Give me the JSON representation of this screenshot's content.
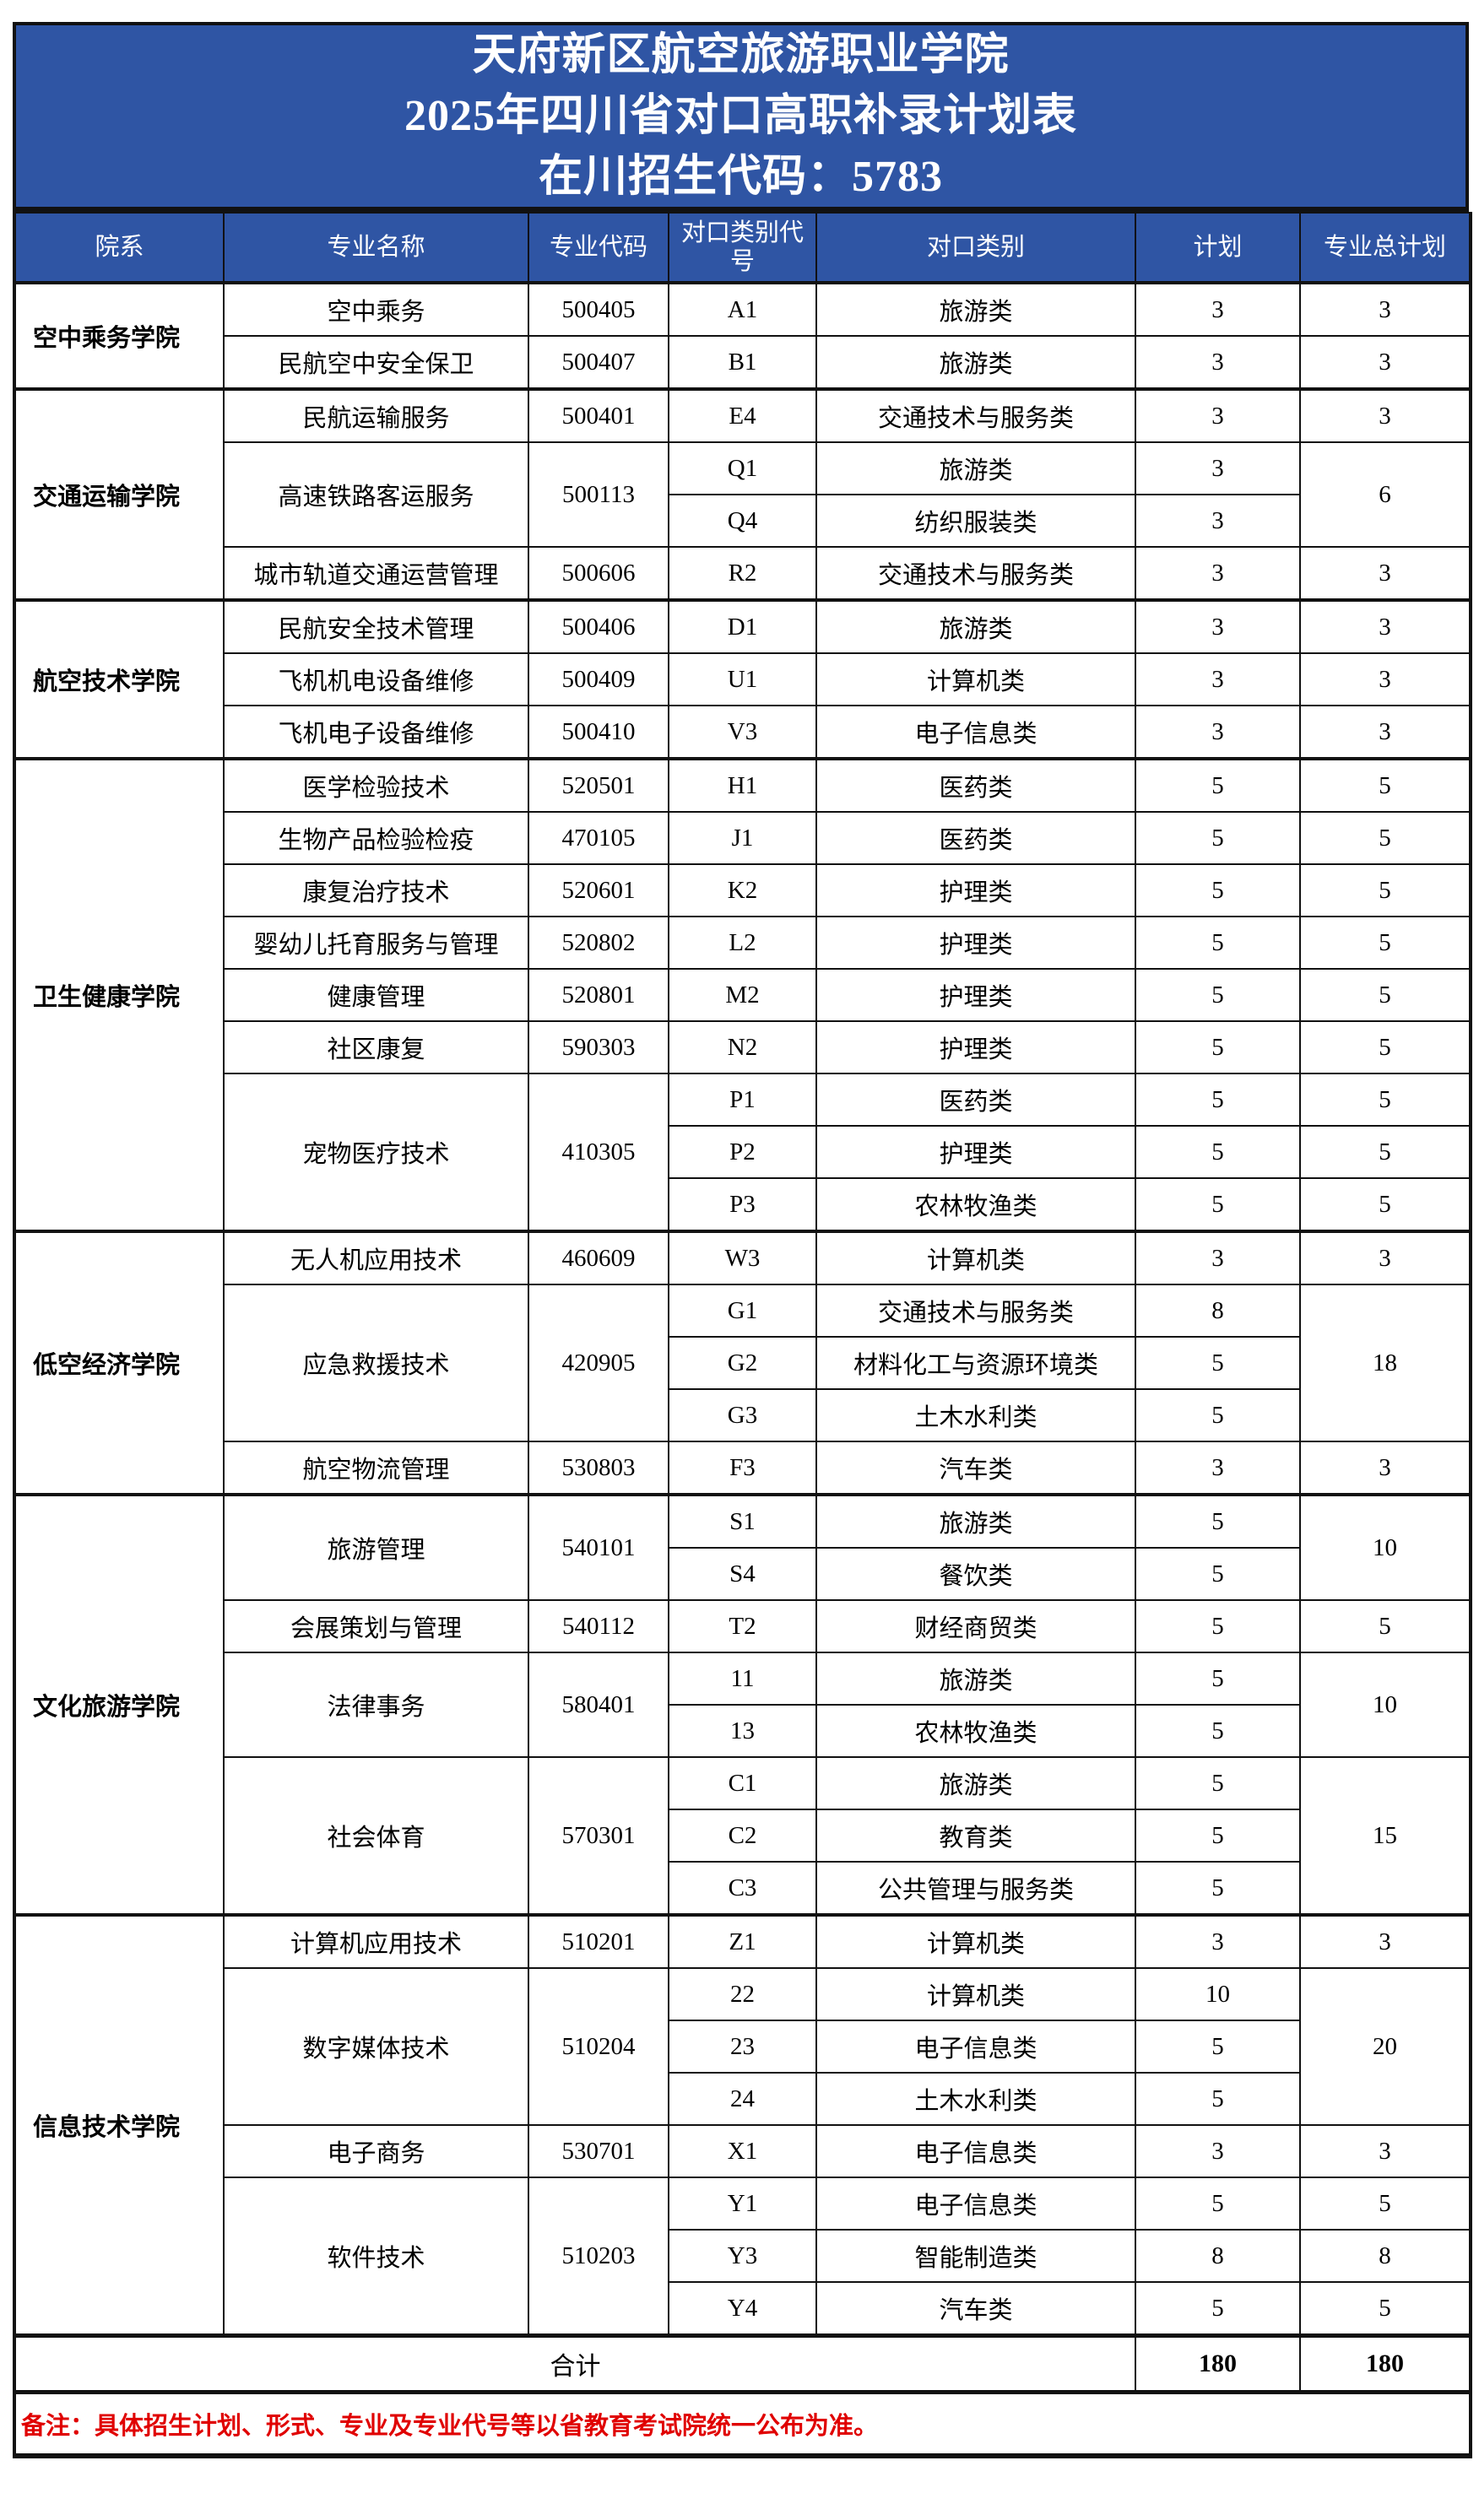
{
  "title": {
    "line1": "天府新区航空旅游职业学院",
    "line2": "2025年四川省对口高职补录计划表",
    "line3": "在川招生代码：5783"
  },
  "colors": {
    "header_bg": "#2F55A4",
    "header_text": "#FFFFFF",
    "note_text": "#E00000"
  },
  "columns": [
    "院系",
    "专业名称",
    "专业代码",
    "对口类别代号",
    "对口类别",
    "计划",
    "专业总计划"
  ],
  "departments": [
    {
      "name": "空中乘务学院",
      "majors": [
        {
          "name": "空中乘务",
          "code": "500405",
          "total": "3",
          "categories": [
            {
              "code": "A1",
              "category": "旅游类",
              "plan": "3"
            }
          ]
        },
        {
          "name": "民航空中安全保卫",
          "code": "500407",
          "total": "3",
          "categories": [
            {
              "code": "B1",
              "category": "旅游类",
              "plan": "3"
            }
          ]
        }
      ]
    },
    {
      "name": "交通运输学院",
      "majors": [
        {
          "name": "民航运输服务",
          "code": "500401",
          "total": "3",
          "categories": [
            {
              "code": "E4",
              "category": "交通技术与服务类",
              "plan": "3"
            }
          ]
        },
        {
          "name": "高速铁路客运服务",
          "code": "500113",
          "total": "6",
          "categories": [
            {
              "code": "Q1",
              "category": "旅游类",
              "plan": "3"
            },
            {
              "code": "Q4",
              "category": "纺织服装类",
              "plan": "3"
            }
          ]
        },
        {
          "name": "城市轨道交通运营管理",
          "code": "500606",
          "total": "3",
          "categories": [
            {
              "code": "R2",
              "category": "交通技术与服务类",
              "plan": "3"
            }
          ]
        }
      ]
    },
    {
      "name": "航空技术学院",
      "majors": [
        {
          "name": "民航安全技术管理",
          "code": "500406",
          "total": "3",
          "categories": [
            {
              "code": "D1",
              "category": "旅游类",
              "plan": "3"
            }
          ]
        },
        {
          "name": "飞机机电设备维修",
          "code": "500409",
          "total": "3",
          "categories": [
            {
              "code": "U1",
              "category": "计算机类",
              "plan": "3"
            }
          ]
        },
        {
          "name": "飞机电子设备维修",
          "code": "500410",
          "total": "3",
          "categories": [
            {
              "code": "V3",
              "category": "电子信息类",
              "plan": "3"
            }
          ]
        }
      ]
    },
    {
      "name": "卫生健康学院",
      "majors": [
        {
          "name": "医学检验技术",
          "code": "520501",
          "total": "5",
          "categories": [
            {
              "code": "H1",
              "category": "医药类",
              "plan": "5"
            }
          ]
        },
        {
          "name": "生物产品检验检疫",
          "code": "470105",
          "total": "5",
          "categories": [
            {
              "code": "J1",
              "category": "医药类",
              "plan": "5"
            }
          ]
        },
        {
          "name": "康复治疗技术",
          "code": "520601",
          "total": "5",
          "categories": [
            {
              "code": "K2",
              "category": "护理类",
              "plan": "5"
            }
          ]
        },
        {
          "name": "婴幼儿托育服务与管理",
          "code": "520802",
          "total": "5",
          "categories": [
            {
              "code": "L2",
              "category": "护理类",
              "plan": "5"
            }
          ]
        },
        {
          "name": "健康管理",
          "code": "520801",
          "total": "5",
          "categories": [
            {
              "code": "M2",
              "category": "护理类",
              "plan": "5"
            }
          ]
        },
        {
          "name": "社区康复",
          "code": "590303",
          "total": "5",
          "categories": [
            {
              "code": "N2",
              "category": "护理类",
              "plan": "5"
            }
          ]
        },
        {
          "name": "宠物医疗技术",
          "code": "410305",
          "totals": [
            "5",
            "5",
            "5"
          ],
          "categories": [
            {
              "code": "P1",
              "category": "医药类",
              "plan": "5"
            },
            {
              "code": "P2",
              "category": "护理类",
              "plan": "5"
            },
            {
              "code": "P3",
              "category": "农林牧渔类",
              "plan": "5"
            }
          ]
        }
      ]
    },
    {
      "name": "低空经济学院",
      "majors": [
        {
          "name": "无人机应用技术",
          "code": "460609",
          "total": "3",
          "categories": [
            {
              "code": "W3",
              "category": "计算机类",
              "plan": "3"
            }
          ]
        },
        {
          "name": "应急救援技术",
          "code": "420905",
          "total": "18",
          "categories": [
            {
              "code": "G1",
              "category": "交通技术与服务类",
              "plan": "8"
            },
            {
              "code": "G2",
              "category": "材料化工与资源环境类",
              "plan": "5"
            },
            {
              "code": "G3",
              "category": "土木水利类",
              "plan": "5"
            }
          ]
        },
        {
          "name": "航空物流管理",
          "code": "530803",
          "total": "3",
          "categories": [
            {
              "code": "F3",
              "category": "汽车类",
              "plan": "3"
            }
          ]
        }
      ]
    },
    {
      "name": "文化旅游学院",
      "majors": [
        {
          "name": "旅游管理",
          "code": "540101",
          "total": "10",
          "categories": [
            {
              "code": "S1",
              "category": "旅游类",
              "plan": "5"
            },
            {
              "code": "S4",
              "category": "餐饮类",
              "plan": "5"
            }
          ]
        },
        {
          "name": "会展策划与管理",
          "code": "540112",
          "total": "5",
          "categories": [
            {
              "code": "T2",
              "category": "财经商贸类",
              "plan": "5"
            }
          ]
        },
        {
          "name": "法律事务",
          "code": "580401",
          "total": "10",
          "categories": [
            {
              "code": "11",
              "category": "旅游类",
              "plan": "5"
            },
            {
              "code": "13",
              "category": "农林牧渔类",
              "plan": "5"
            }
          ]
        },
        {
          "name": "社会体育",
          "code": "570301",
          "total": "15",
          "categories": [
            {
              "code": "C1",
              "category": "旅游类",
              "plan": "5"
            },
            {
              "code": "C2",
              "category": "教育类",
              "plan": "5"
            },
            {
              "code": "C3",
              "category": "公共管理与服务类",
              "plan": "5"
            }
          ]
        }
      ]
    },
    {
      "name": "信息技术学院",
      "majors": [
        {
          "name": "计算机应用技术",
          "code": "510201",
          "total": "3",
          "categories": [
            {
              "code": "Z1",
              "category": "计算机类",
              "plan": "3"
            }
          ]
        },
        {
          "name": "数字媒体技术",
          "code": "510204",
          "total": "20",
          "categories": [
            {
              "code": "22",
              "category": "计算机类",
              "plan": "10"
            },
            {
              "code": "23",
              "category": "电子信息类",
              "plan": "5"
            },
            {
              "code": "24",
              "category": "土木水利类",
              "plan": "5"
            }
          ]
        },
        {
          "name": "电子商务",
          "code": "530701",
          "total": "3",
          "categories": [
            {
              "code": "X1",
              "category": "电子信息类",
              "plan": "3"
            }
          ]
        },
        {
          "name": "软件技术",
          "code": "510203",
          "totals": [
            "5",
            "8",
            "5"
          ],
          "categories": [
            {
              "code": "Y1",
              "category": "电子信息类",
              "plan": "5"
            },
            {
              "code": "Y3",
              "category": "智能制造类",
              "plan": "8"
            },
            {
              "code": "Y4",
              "category": "汽车类",
              "plan": "5"
            }
          ]
        }
      ]
    }
  ],
  "total": {
    "label": "合计",
    "plan": "180",
    "total": "180"
  },
  "note": "备注：具体招生计划、形式、专业及专业代号等以省教育考试院统一公布为准。"
}
